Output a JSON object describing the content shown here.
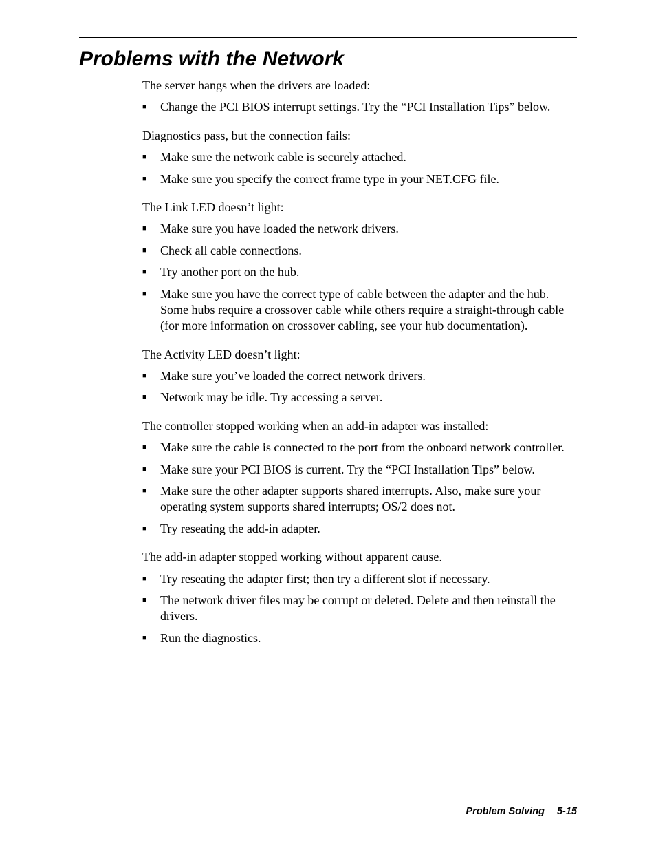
{
  "title": "Problems with the Network",
  "sections": [
    {
      "lead": "The server hangs when the drivers are loaded:",
      "items": [
        "Change the PCI BIOS interrupt settings.  Try the “PCI Installation Tips” below."
      ]
    },
    {
      "lead": "Diagnostics pass, but the connection fails:",
      "items": [
        "Make sure the network cable is securely attached.",
        "Make sure you specify the correct frame type in your NET.CFG file."
      ]
    },
    {
      "lead": "The Link LED doesn’t light:",
      "items": [
        "Make sure you have loaded the network drivers.",
        "Check all cable connections.",
        "Try another port on the hub.",
        "Make sure you have the correct type of cable between the adapter and the hub.  Some hubs require a crossover cable while others require a straight-through cable (for more information on crossover cabling, see your hub documentation)."
      ]
    },
    {
      "lead": "The Activity LED doesn’t light:",
      "items": [
        "Make sure you’ve loaded the correct network drivers.",
        "Network may be idle.  Try accessing a server."
      ]
    },
    {
      "lead": "The controller stopped working when an add-in adapter was installed:",
      "items": [
        "Make sure the cable is connected to the port from the onboard network controller.",
        "Make sure your PCI BIOS is current.  Try the “PCI Installation Tips” below.",
        "Make sure the other adapter supports shared interrupts.  Also, make sure your operating system supports shared interrupts; OS/2 does not.",
        "Try reseating the add-in adapter."
      ]
    },
    {
      "lead": "The add-in adapter stopped working without apparent cause.",
      "items": [
        "Try reseating the adapter first; then try a different slot if necessary.",
        "The network driver files may be corrupt or deleted.  Delete and then reinstall the drivers.",
        "Run the diagnostics."
      ]
    }
  ],
  "footer": {
    "section": "Problem Solving",
    "page": "5-15"
  }
}
